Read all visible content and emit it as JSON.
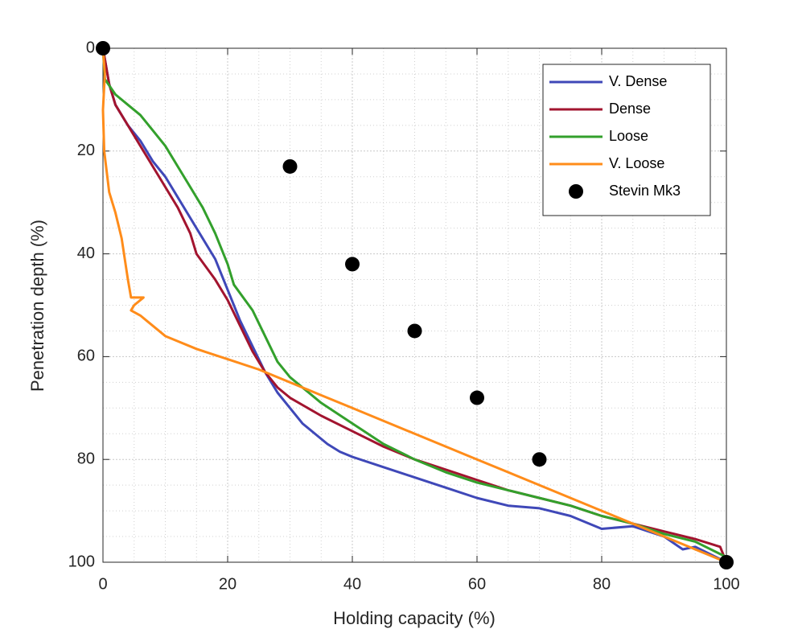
{
  "chart_data": {
    "type": "line",
    "xlabel": "Holding capacity (%)",
    "ylabel": "Penetration depth (%)",
    "xlim": [
      0,
      100
    ],
    "xticks": [
      0,
      20,
      40,
      60,
      80,
      100
    ],
    "ylim": [
      0,
      100
    ],
    "yticks": [
      0,
      20,
      40,
      60,
      80,
      100
    ],
    "y_reversed": true,
    "grid": true,
    "minor_grid": true,
    "legend": "northeast",
    "series": [
      {
        "name": "V. Dense",
        "color": "#3f48b8",
        "mode": "line",
        "x": [
          0,
          1,
          2,
          4,
          6,
          8,
          10,
          12,
          14,
          16,
          18,
          20,
          22,
          24,
          26,
          28,
          30,
          32,
          34,
          36,
          38,
          40,
          45,
          50,
          55,
          60,
          65,
          70,
          75,
          80,
          85,
          90,
          93,
          95,
          100
        ],
        "values": [
          0,
          7,
          11,
          15,
          18,
          22,
          25,
          29,
          33,
          37,
          41,
          47,
          53,
          58,
          63,
          67,
          70,
          73,
          75,
          77,
          78.5,
          79.5,
          81.5,
          83.5,
          85.5,
          87.5,
          89,
          89.5,
          91,
          93.5,
          93,
          95,
          97.5,
          97,
          100
        ]
      },
      {
        "name": "Dense",
        "color": "#a2142f",
        "mode": "line",
        "x": [
          0,
          1,
          2,
          4,
          6,
          8,
          10,
          12,
          14,
          15,
          18,
          20,
          22,
          24,
          26,
          28,
          30,
          35,
          40,
          45,
          50,
          55,
          60,
          65,
          70,
          75,
          80,
          85,
          90,
          95,
          99,
          100
        ],
        "values": [
          0,
          7,
          11,
          15,
          19,
          23,
          27,
          31,
          36,
          40,
          45,
          49,
          54,
          59,
          63,
          66,
          68,
          71.5,
          74.5,
          77.5,
          80,
          82,
          84,
          86,
          87.5,
          89,
          91,
          92.5,
          94,
          95.5,
          97,
          100
        ]
      },
      {
        "name": "Loose",
        "color": "#33a02c",
        "mode": "line",
        "x": [
          0,
          0.3,
          2,
          4,
          6,
          8,
          10,
          12,
          14,
          16,
          18,
          20,
          21,
          24,
          26,
          28,
          30,
          35,
          40,
          45,
          50,
          55,
          60,
          65,
          70,
          75,
          80,
          85,
          90,
          95,
          100
        ],
        "values": [
          0,
          6,
          9,
          11,
          13,
          16,
          19,
          23,
          27,
          31,
          36,
          42,
          46,
          51,
          56,
          61,
          64,
          69,
          73,
          77,
          80,
          82.5,
          84.5,
          86,
          87.5,
          89,
          91,
          92.5,
          94.5,
          96,
          99
        ]
      },
      {
        "name": "V. Loose",
        "color": "#ff8c1a",
        "mode": "line",
        "x": [
          0,
          0.3,
          0,
          0.2,
          1,
          2,
          3,
          4,
          4.5,
          6,
          6.5,
          5,
          4.5,
          6,
          7,
          9,
          10,
          12,
          15,
          20,
          25,
          30,
          35,
          40,
          50,
          60,
          70,
          80,
          90,
          100
        ],
        "values": [
          0,
          5,
          12,
          20,
          28,
          32,
          37,
          45,
          48.5,
          48.5,
          48.5,
          50,
          51,
          52,
          53,
          55,
          56,
          57,
          58.5,
          60.5,
          62.5,
          65,
          67.5,
          70,
          75,
          80,
          85,
          90,
          95,
          100
        ]
      },
      {
        "name": "Stevin Mk3",
        "color": "#000000",
        "mode": "marker",
        "x": [
          0,
          30,
          40,
          50,
          60,
          70,
          100
        ],
        "values": [
          0,
          23,
          42,
          55,
          68,
          80,
          100
        ]
      }
    ]
  }
}
